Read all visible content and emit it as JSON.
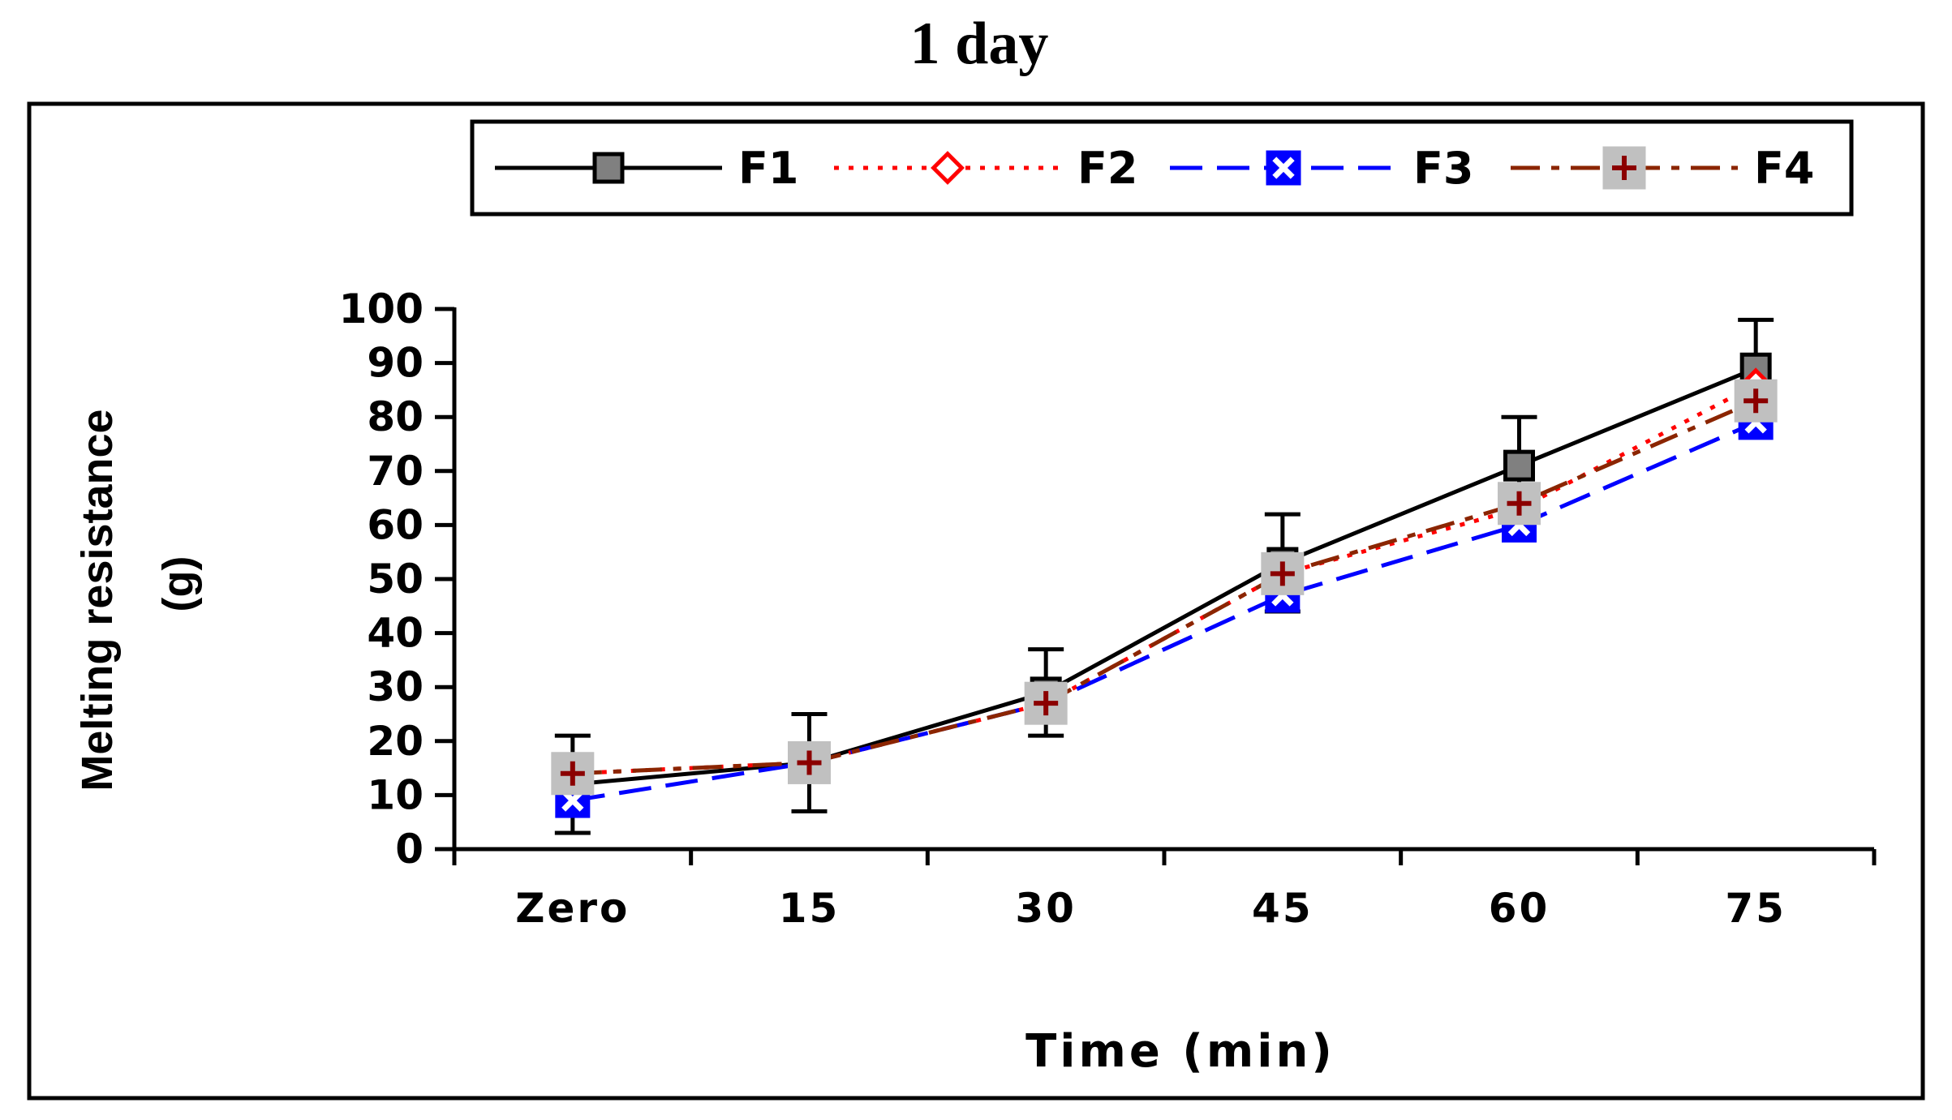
{
  "chart_data": {
    "type": "line",
    "title": "1 day",
    "xlabel": "Time (min)",
    "ylabel_lines": [
      "Melting resistance",
      "(g)"
    ],
    "categories": [
      "Zero",
      "15",
      "30",
      "45",
      "60",
      "75"
    ],
    "ylim": [
      0,
      100
    ],
    "yticks": [
      0,
      10,
      20,
      30,
      40,
      50,
      60,
      70,
      80,
      90,
      100
    ],
    "legend_position": "top",
    "series": [
      {
        "name": "F1",
        "values": [
          12,
          16,
          29,
          53,
          71,
          89
        ],
        "errors": [
          9,
          9,
          8,
          9,
          9,
          9
        ],
        "color": "#000000",
        "marker_fill": "#808080",
        "marker": "square",
        "dash": "solid"
      },
      {
        "name": "F2",
        "values": [
          14,
          16,
          27,
          51,
          63,
          86
        ],
        "errors": [
          0,
          0,
          0,
          0,
          0,
          0
        ],
        "color": "#ff0000",
        "marker_fill": "#ffffff",
        "marker": "diamond",
        "dash": "dotted"
      },
      {
        "name": "F3",
        "values": [
          9,
          16,
          27,
          47,
          60,
          79
        ],
        "errors": [
          0,
          0,
          0,
          0,
          0,
          0
        ],
        "color": "#0000ff",
        "marker_fill": "#0000ff",
        "marker": "x-square",
        "dash": "dashed"
      },
      {
        "name": "F4",
        "values": [
          14,
          16,
          27,
          51,
          64,
          83
        ],
        "errors": [
          0,
          0,
          0,
          0,
          0,
          0
        ],
        "color": "#8b2500",
        "marker_fill": "#c0c0c0",
        "marker": "plus-square",
        "dash": "dashdot"
      }
    ]
  }
}
